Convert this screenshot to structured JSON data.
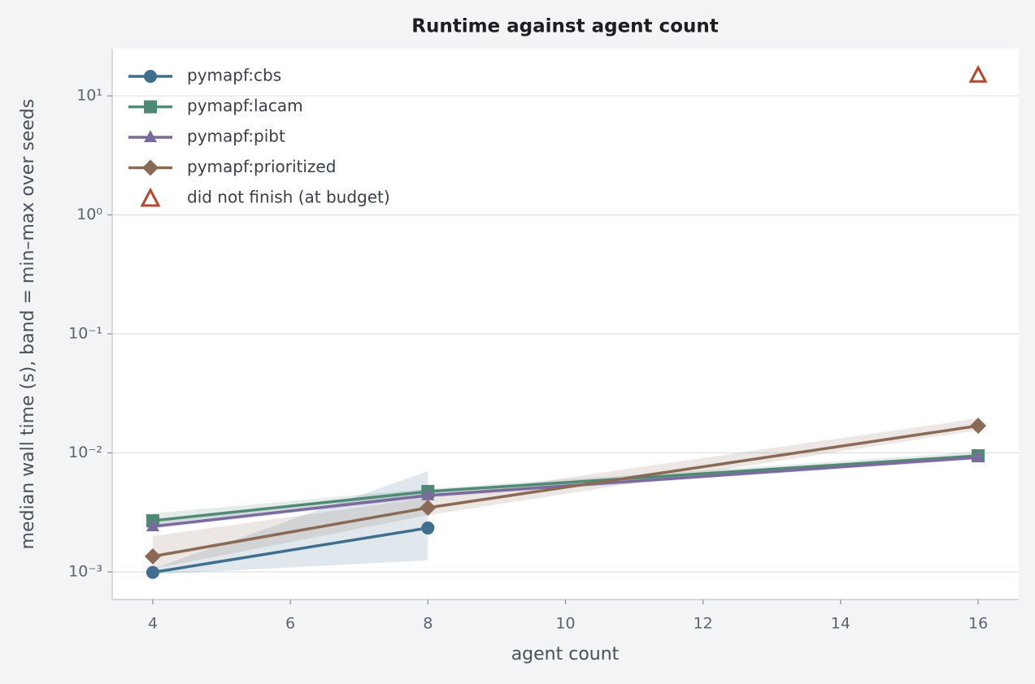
{
  "chart_data": {
    "type": "line",
    "title": "Runtime against agent count",
    "x_label": "agent count",
    "y_label": "median wall time (s), band = min–max over seeds",
    "log_y": true,
    "grid": true,
    "legend": "upper-left",
    "x": [
      4,
      8,
      16
    ],
    "xlim": [
      3.41,
      16.59
    ],
    "xticks": [
      4,
      6,
      8,
      10,
      12,
      14,
      16
    ],
    "ylim": [
      0.000586,
      24.9
    ],
    "yticks": [
      {
        "value": 0.001,
        "label": "10⁻³"
      },
      {
        "value": 0.01,
        "label": "10⁻²"
      },
      {
        "value": 0.1,
        "label": "10⁻¹"
      },
      {
        "value": 1,
        "label": "10⁰"
      },
      {
        "value": 10,
        "label": "10¹"
      }
    ],
    "series": [
      {
        "name": "pymapf:cbs",
        "color": "#3f6e8e",
        "marker": "circle",
        "values": [
          0.00099,
          0.00234,
          null
        ],
        "band_lower": [
          0.00095,
          0.00125,
          null
        ],
        "band_upper": [
          0.00106,
          0.00702,
          null
        ]
      },
      {
        "name": "pymapf:lacam",
        "color": "#4e8a74",
        "marker": "square",
        "values": [
          0.00269,
          0.00474,
          0.00946
        ],
        "band_lower": [
          0.0025,
          0.0045,
          0.009
        ],
        "band_upper": [
          0.0031,
          0.005,
          0.0102
        ]
      },
      {
        "name": "pymapf:pibt",
        "color": "#7a6a9e",
        "marker": "triangle",
        "values": [
          0.00241,
          0.00439,
          0.00916
        ],
        "band_lower": [
          0.0023,
          0.0042,
          0.0088
        ],
        "band_upper": [
          0.0026,
          0.0046,
          0.0096
        ]
      },
      {
        "name": "pymapf:prioritized",
        "color": "#8b6a55",
        "marker": "diamond",
        "values": [
          0.00135,
          0.00346,
          0.0169
        ],
        "band_lower": [
          0.00106,
          0.003,
          0.0155
        ],
        "band_upper": [
          0.002,
          0.0042,
          0.0195
        ]
      }
    ],
    "dnf": {
      "name": "did not finish (at budget)",
      "color": "#b5482e",
      "x": [
        16
      ],
      "values": [
        15
      ]
    }
  }
}
